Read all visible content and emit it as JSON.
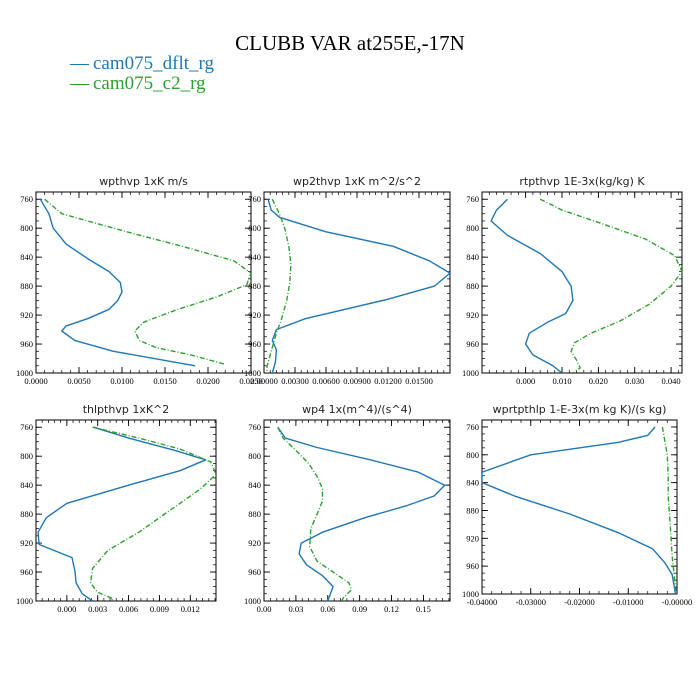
{
  "figure": {
    "title": "CLUBB VAR at255E,-17N"
  },
  "legend": [
    {
      "marker": "—",
      "label": "cam075_dflt_rg",
      "color": "#1f77b4",
      "dash": "solid"
    },
    {
      "marker": "—",
      "label": "cam075_c2_rg",
      "color": "#2ca02c",
      "dash": "dashdot"
    }
  ],
  "chart_data": [
    {
      "type": "line",
      "title": "wpthvp  1xK m/s",
      "xlim": [
        0,
        0.025
      ],
      "ylim": [
        1000,
        750
      ],
      "x_ticks": [
        0,
        0.005,
        0.01,
        0.015,
        0.02,
        0.025
      ],
      "x_tick_labels": [
        "0.0000",
        "0.0050",
        "0.0100",
        "0.0150",
        "0.0200",
        "0.0250"
      ],
      "y_ticks": [
        760,
        800,
        840,
        880,
        920,
        960,
        1000
      ],
      "y_tick_labels": [
        "760",
        "800",
        "840",
        "880",
        "920",
        "960",
        "1000"
      ],
      "series": [
        {
          "name": "cam075_dflt_rg",
          "color": "#1f77b4",
          "dash": "solid",
          "x": [
            0.0005,
            0.0015,
            0.002,
            0.0035,
            0.006,
            0.0085,
            0.0098,
            0.01,
            0.0095,
            0.0085,
            0.006,
            0.0035,
            0.003,
            0.0045,
            0.009,
            0.0185
          ],
          "y": [
            760,
            780,
            800,
            822,
            842,
            860,
            875,
            888,
            900,
            912,
            925,
            935,
            942,
            955,
            970,
            990
          ]
        },
        {
          "name": "cam075_c2_rg",
          "color": "#2ca02c",
          "dash": "dashdot",
          "x": [
            0.001,
            0.003,
            0.006,
            0.0115,
            0.017,
            0.023,
            0.025,
            0.0245,
            0.021,
            0.0165,
            0.0125,
            0.0115,
            0.012,
            0.014,
            0.018,
            0.022
          ],
          "y": [
            760,
            780,
            790,
            808,
            825,
            845,
            862,
            878,
            895,
            912,
            930,
            942,
            955,
            965,
            975,
            988
          ]
        }
      ]
    },
    {
      "type": "line",
      "title": "wp2thvp  1xK m^2/s^2",
      "xlim": [
        0,
        0.018
      ],
      "ylim": [
        1000,
        750
      ],
      "x_ticks": [
        0,
        0.003,
        0.006,
        0.009,
        0.012,
        0.015
      ],
      "x_tick_labels": [
        "0.00000",
        "0.00300",
        "0.00600",
        "0.00900",
        "0.01200",
        "0.01500"
      ],
      "y_ticks": [
        760,
        800,
        840,
        880,
        920,
        960,
        1000
      ],
      "y_tick_labels": [
        "760",
        "800",
        "840",
        "880",
        "920",
        "960",
        "1000"
      ],
      "series": [
        {
          "name": "cam075_dflt_rg",
          "color": "#1f77b4",
          "dash": "solid",
          "x": [
            0.0004,
            0.0007,
            0.0015,
            0.006,
            0.0125,
            0.016,
            0.018,
            0.0165,
            0.012,
            0.004,
            0.0012,
            0.0008,
            0.0012,
            0.0011,
            0.0008
          ],
          "y": [
            760,
            775,
            785,
            805,
            825,
            845,
            862,
            880,
            898,
            925,
            940,
            955,
            968,
            985,
            1000
          ]
        },
        {
          "name": "cam075_c2_rg",
          "color": "#2ca02c",
          "dash": "dashdot",
          "x": [
            0.0008,
            0.0015,
            0.002,
            0.0024,
            0.0026,
            0.0025,
            0.0022,
            0.0017,
            0.0012,
            0.0009,
            0.0006,
            0.0003,
            0.0003
          ],
          "y": [
            760,
            780,
            800,
            825,
            850,
            875,
            900,
            925,
            945,
            960,
            975,
            990,
            1000
          ]
        }
      ]
    },
    {
      "type": "line",
      "title": "rtpthvp  1E-3x(kg/kg) K",
      "xlim": [
        -0.012,
        0.043
      ],
      "ylim": [
        1000,
        750
      ],
      "x_ticks": [
        0,
        0.01,
        0.02,
        0.03,
        0.04
      ],
      "x_tick_labels": [
        "0.000",
        "0.010",
        "0.020",
        "0.030",
        "0.040"
      ],
      "y_ticks": [
        760,
        800,
        840,
        880,
        920,
        960,
        1000
      ],
      "y_tick_labels": [
        "760",
        "800",
        "840",
        "880",
        "920",
        "960",
        "1000"
      ],
      "series": [
        {
          "name": "cam075_dflt_rg",
          "color": "#1f77b4",
          "dash": "solid",
          "x": [
            -0.005,
            -0.008,
            -0.0095,
            -0.005,
            0.004,
            0.01,
            0.0125,
            0.013,
            0.011,
            0.006,
            0.001,
            0.0,
            0.002,
            0.0075,
            0.01
          ],
          "y": [
            760,
            775,
            790,
            810,
            835,
            860,
            880,
            900,
            918,
            930,
            945,
            960,
            975,
            990,
            1000
          ]
        },
        {
          "name": "cam075_c2_rg",
          "color": "#2ca02c",
          "dash": "dashdot",
          "x": [
            0.004,
            0.01,
            0.02,
            0.033,
            0.041,
            0.043,
            0.04,
            0.034,
            0.026,
            0.018,
            0.0135,
            0.0125,
            0.014,
            0.015,
            0.013
          ],
          "y": [
            760,
            775,
            792,
            815,
            838,
            860,
            880,
            905,
            928,
            945,
            958,
            970,
            982,
            993,
            1000
          ]
        }
      ]
    },
    {
      "type": "line",
      "title": "thlpthvp  1xK^2",
      "xlim": [
        -0.003,
        0.0145
      ],
      "ylim": [
        1000,
        750
      ],
      "x_ticks": [
        0,
        0.003,
        0.006,
        0.009,
        0.012
      ],
      "x_tick_labels": [
        "0.000",
        "0.003",
        "0.006",
        "0.009",
        "0.012"
      ],
      "y_ticks": [
        760,
        800,
        840,
        880,
        920,
        960,
        1000
      ],
      "y_tick_labels": [
        "760",
        "800",
        "840",
        "880",
        "920",
        "960",
        "1000"
      ],
      "series": [
        {
          "name": "cam075_dflt_rg",
          "color": "#1f77b4",
          "dash": "solid",
          "x": [
            0.0026,
            0.006,
            0.0105,
            0.0135,
            0.011,
            0.006,
            0.0,
            -0.002,
            -0.0028,
            -0.0027,
            0.0005,
            0.0008,
            0.0009,
            0.0015,
            0.0025
          ],
          "y": [
            760,
            775,
            792,
            805,
            820,
            840,
            865,
            885,
            905,
            922,
            940,
            960,
            975,
            990,
            1000
          ]
        },
        {
          "name": "cam075_c2_rg",
          "color": "#2ca02c",
          "dash": "dashdot",
          "x": [
            0.0025,
            0.007,
            0.011,
            0.014,
            0.0145,
            0.013,
            0.011,
            0.009,
            0.007,
            0.004,
            0.0025,
            0.0023,
            0.003,
            0.0045,
            0.0042
          ],
          "y": [
            760,
            775,
            790,
            808,
            825,
            845,
            865,
            885,
            905,
            930,
            955,
            975,
            988,
            997,
            1000
          ]
        }
      ]
    },
    {
      "type": "line",
      "title": "wp4  1x(m^4)/(s^4)",
      "xlim": [
        0,
        0.175
      ],
      "ylim": [
        1000,
        750
      ],
      "x_ticks": [
        0,
        0.03,
        0.06,
        0.09,
        0.12,
        0.15
      ],
      "x_tick_labels": [
        "0.00",
        "0.03",
        "0.06",
        "0.09",
        "0.12",
        "0.15"
      ],
      "y_ticks": [
        760,
        800,
        840,
        880,
        920,
        960,
        1000
      ],
      "y_tick_labels": [
        "760",
        "800",
        "840",
        "880",
        "920",
        "960",
        "1000"
      ],
      "series": [
        {
          "name": "cam075_dflt_rg",
          "color": "#1f77b4",
          "dash": "solid",
          "x": [
            0.013,
            0.02,
            0.05,
            0.1,
            0.145,
            0.17,
            0.16,
            0.135,
            0.095,
            0.055,
            0.035,
            0.033,
            0.04,
            0.055,
            0.065,
            0.06
          ],
          "y": [
            760,
            775,
            788,
            805,
            822,
            840,
            855,
            868,
            885,
            905,
            920,
            935,
            950,
            965,
            980,
            1000
          ]
        },
        {
          "name": "cam075_c2_rg",
          "color": "#2ca02c",
          "dash": "dashdot",
          "x": [
            0.013,
            0.018,
            0.03,
            0.042,
            0.05,
            0.055,
            0.055,
            0.05,
            0.044,
            0.043,
            0.05,
            0.065,
            0.08,
            0.082,
            0.075,
            0.073
          ],
          "y": [
            760,
            775,
            792,
            810,
            828,
            845,
            862,
            880,
            900,
            925,
            945,
            960,
            975,
            985,
            995,
            1000
          ]
        }
      ]
    },
    {
      "type": "line",
      "title": "wprtpthlp  1-E-3x(m kg K)/(s kg)",
      "xlim": [
        -0.04,
        0.0
      ],
      "ylim": [
        1000,
        750
      ],
      "x_ticks": [
        -0.04,
        -0.03,
        -0.02,
        -0.01,
        0.0
      ],
      "x_tick_labels": [
        "-0.04000",
        "-0.03000",
        "-0.02000",
        "-0.01000",
        "-0.00000"
      ],
      "y_ticks": [
        760,
        800,
        840,
        880,
        920,
        960,
        1000
      ],
      "y_tick_labels": [
        "760",
        "800",
        "840",
        "880",
        "920",
        "960",
        "1000"
      ],
      "series": [
        {
          "name": "cam075_dflt_rg",
          "color": "#1f77b4",
          "dash": "solid",
          "x": [
            -0.0045,
            -0.006,
            -0.012,
            -0.03,
            -0.04,
            -0.04,
            -0.033,
            -0.022,
            -0.012,
            -0.005,
            -0.0025,
            -0.001,
            -0.0006,
            -0.0003
          ],
          "y": [
            760,
            772,
            782,
            800,
            825,
            840,
            860,
            885,
            912,
            935,
            955,
            972,
            988,
            1000
          ]
        },
        {
          "name": "cam075_c2_rg",
          "color": "#2ca02c",
          "dash": "dashdot",
          "x": [
            -0.003,
            -0.0025,
            -0.002,
            -0.0018,
            -0.0018,
            -0.0015,
            -0.0012,
            -0.001,
            -0.0007,
            -0.0004,
            -0.0002
          ],
          "y": [
            760,
            780,
            800,
            830,
            860,
            890,
            920,
            945,
            965,
            985,
            1000
          ]
        }
      ]
    }
  ]
}
